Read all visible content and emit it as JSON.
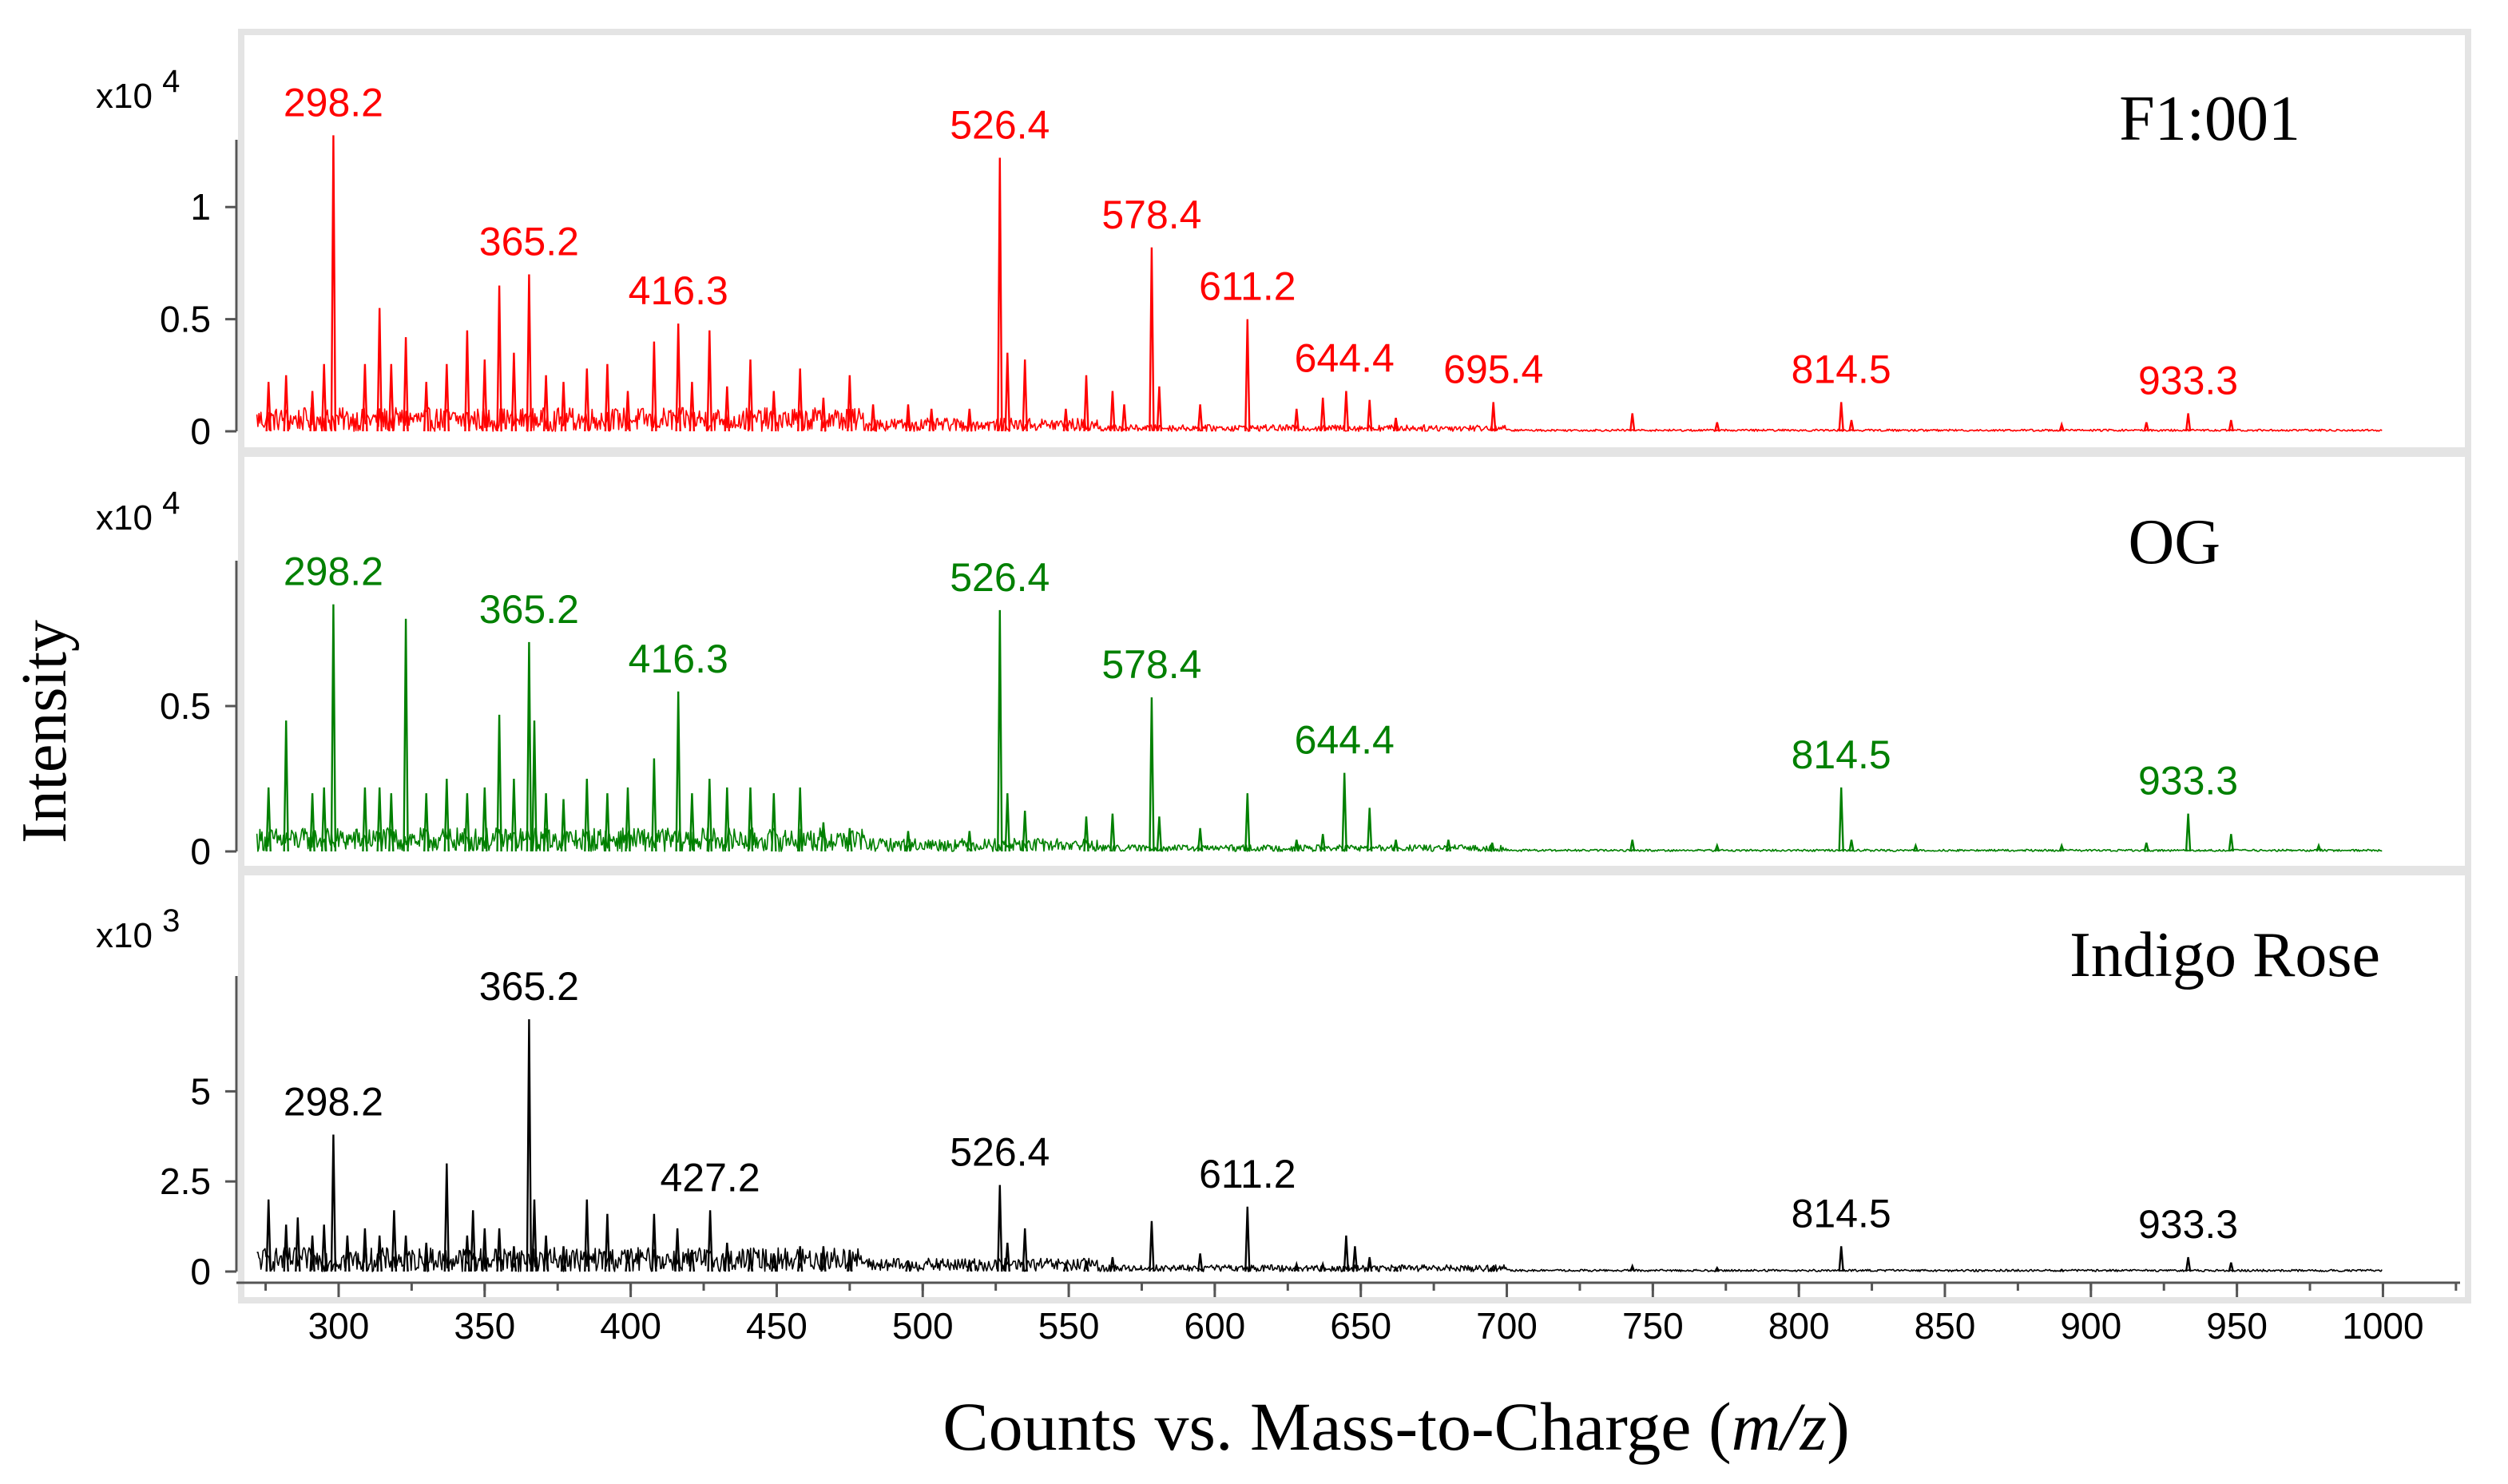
{
  "figure": {
    "ylabel": "Intensity",
    "xlabel_prefix": "Counts vs. Mass-to-Charge (",
    "xlabel_italic": "m/z",
    "xlabel_suffix": ")"
  },
  "chart_data": [
    {
      "type": "line",
      "title": "F1:001",
      "color": "#ff0000",
      "multiplier_base": "x10",
      "multiplier_exp": "4",
      "xlim": [
        265,
        1010
      ],
      "ylim": [
        0,
        1.3
      ],
      "y_ticks": [
        {
          "value": 0,
          "label": "0"
        },
        {
          "value": 0.5,
          "label": "0.5"
        },
        {
          "value": 1,
          "label": "1"
        }
      ],
      "x_ticks": [
        300,
        350,
        400,
        450,
        500,
        550,
        600,
        650,
        700,
        750,
        800,
        850,
        900,
        950,
        1000
      ],
      "peaks": [
        [
          276,
          0.22
        ],
        [
          282,
          0.25
        ],
        [
          291,
          0.18
        ],
        [
          295,
          0.3
        ],
        [
          298.2,
          1.32
        ],
        [
          309,
          0.3
        ],
        [
          314,
          0.55
        ],
        [
          318,
          0.3
        ],
        [
          323,
          0.42
        ],
        [
          330,
          0.22
        ],
        [
          337,
          0.3
        ],
        [
          344,
          0.45
        ],
        [
          350,
          0.32
        ],
        [
          355,
          0.65
        ],
        [
          360,
          0.35
        ],
        [
          365.2,
          0.7
        ],
        [
          371,
          0.25
        ],
        [
          377,
          0.22
        ],
        [
          385,
          0.28
        ],
        [
          392,
          0.3
        ],
        [
          399,
          0.18
        ],
        [
          408,
          0.4
        ],
        [
          416.3,
          0.48
        ],
        [
          421,
          0.22
        ],
        [
          427,
          0.45
        ],
        [
          433,
          0.2
        ],
        [
          441,
          0.32
        ],
        [
          449,
          0.18
        ],
        [
          458,
          0.28
        ],
        [
          466,
          0.15
        ],
        [
          475,
          0.25
        ],
        [
          483,
          0.12
        ],
        [
          495,
          0.12
        ],
        [
          503,
          0.1
        ],
        [
          516,
          0.1
        ],
        [
          526.4,
          1.22
        ],
        [
          529,
          0.35
        ],
        [
          535,
          0.32
        ],
        [
          549,
          0.1
        ],
        [
          556,
          0.25
        ],
        [
          565,
          0.18
        ],
        [
          569,
          0.12
        ],
        [
          578.4,
          0.82
        ],
        [
          581,
          0.2
        ],
        [
          595,
          0.12
        ],
        [
          611.2,
          0.5
        ],
        [
          628,
          0.1
        ],
        [
          637,
          0.15
        ],
        [
          645,
          0.18
        ],
        [
          653,
          0.14
        ],
        [
          662,
          0.06
        ],
        [
          695.4,
          0.13
        ],
        [
          743,
          0.08
        ],
        [
          772,
          0.04
        ],
        [
          814.5,
          0.13
        ],
        [
          818,
          0.05
        ],
        [
          890,
          0.03
        ],
        [
          919,
          0.04
        ],
        [
          933.3,
          0.08
        ],
        [
          948,
          0.05
        ]
      ],
      "labels": [
        {
          "x": 298.2,
          "y": 1.32,
          "text": "298.2"
        },
        {
          "x": 365.2,
          "y": 0.7,
          "text": "365.2"
        },
        {
          "x": 416.3,
          "y": 0.48,
          "text": "416.3"
        },
        {
          "x": 526.4,
          "y": 1.22,
          "text": "526.4"
        },
        {
          "x": 578.4,
          "y": 0.82,
          "text": "578.4"
        },
        {
          "x": 611.2,
          "y": 0.5,
          "text": "611.2"
        },
        {
          "x": 644.4,
          "y": 0.18,
          "text": "644.4"
        },
        {
          "x": 695.4,
          "y": 0.13,
          "text": "695.4"
        },
        {
          "x": 814.5,
          "y": 0.13,
          "text": "814.5"
        },
        {
          "x": 933.3,
          "y": 0.08,
          "text": "933.3"
        }
      ]
    },
    {
      "type": "line",
      "title": "OG",
      "color": "#008000",
      "multiplier_base": "x10",
      "multiplier_exp": "4",
      "xlim": [
        265,
        1010
      ],
      "ylim": [
        0,
        1.0
      ],
      "y_ticks": [
        {
          "value": 0,
          "label": "0"
        },
        {
          "value": 0.5,
          "label": "0.5"
        }
      ],
      "x_ticks": [
        300,
        350,
        400,
        450,
        500,
        550,
        600,
        650,
        700,
        750,
        800,
        850,
        900,
        950,
        1000
      ],
      "peaks": [
        [
          276,
          0.22
        ],
        [
          282,
          0.45
        ],
        [
          291,
          0.2
        ],
        [
          295,
          0.22
        ],
        [
          298.2,
          0.85
        ],
        [
          309,
          0.22
        ],
        [
          314,
          0.22
        ],
        [
          318,
          0.2
        ],
        [
          323,
          0.8
        ],
        [
          330,
          0.2
        ],
        [
          337,
          0.25
        ],
        [
          344,
          0.2
        ],
        [
          350,
          0.22
        ],
        [
          355,
          0.47
        ],
        [
          360,
          0.25
        ],
        [
          365.2,
          0.72
        ],
        [
          367,
          0.45
        ],
        [
          371,
          0.2
        ],
        [
          377,
          0.18
        ],
        [
          385,
          0.25
        ],
        [
          392,
          0.2
        ],
        [
          399,
          0.22
        ],
        [
          408,
          0.32
        ],
        [
          416.3,
          0.55
        ],
        [
          421,
          0.2
        ],
        [
          427,
          0.25
        ],
        [
          433,
          0.22
        ],
        [
          441,
          0.22
        ],
        [
          449,
          0.2
        ],
        [
          458,
          0.22
        ],
        [
          466,
          0.1
        ],
        [
          475,
          0.08
        ],
        [
          495,
          0.07
        ],
        [
          516,
          0.07
        ],
        [
          526.4,
          0.83
        ],
        [
          529,
          0.2
        ],
        [
          535,
          0.14
        ],
        [
          556,
          0.12
        ],
        [
          565,
          0.13
        ],
        [
          578.4,
          0.53
        ],
        [
          581,
          0.12
        ],
        [
          595,
          0.08
        ],
        [
          611.2,
          0.2
        ],
        [
          628,
          0.04
        ],
        [
          637,
          0.06
        ],
        [
          644.4,
          0.27
        ],
        [
          653,
          0.15
        ],
        [
          662,
          0.04
        ],
        [
          680,
          0.04
        ],
        [
          695,
          0.03
        ],
        [
          743,
          0.04
        ],
        [
          772,
          0.02
        ],
        [
          814.5,
          0.22
        ],
        [
          818,
          0.04
        ],
        [
          840,
          0.02
        ],
        [
          890,
          0.02
        ],
        [
          919,
          0.03
        ],
        [
          933.3,
          0.13
        ],
        [
          948,
          0.06
        ],
        [
          978,
          0.02
        ]
      ],
      "labels": [
        {
          "x": 298.2,
          "y": 0.85,
          "text": "298.2"
        },
        {
          "x": 365.2,
          "y": 0.72,
          "text": "365.2"
        },
        {
          "x": 416.3,
          "y": 0.55,
          "text": "416.3"
        },
        {
          "x": 526.4,
          "y": 0.83,
          "text": "526.4"
        },
        {
          "x": 578.4,
          "y": 0.53,
          "text": "578.4"
        },
        {
          "x": 644.4,
          "y": 0.27,
          "text": "644.4"
        },
        {
          "x": 814.5,
          "y": 0.22,
          "text": "814.5"
        },
        {
          "x": 933.3,
          "y": 0.13,
          "text": "933.3"
        }
      ]
    },
    {
      "type": "line",
      "title": "Indigo Rose",
      "color": "#000000",
      "multiplier_base": "x10",
      "multiplier_exp": "3",
      "xlim": [
        265,
        1010
      ],
      "ylim": [
        0,
        8.2
      ],
      "y_ticks": [
        {
          "value": 0,
          "label": "0"
        },
        {
          "value": 2.5,
          "label": "2.5"
        },
        {
          "value": 5,
          "label": "5"
        }
      ],
      "x_ticks": [
        300,
        350,
        400,
        450,
        500,
        550,
        600,
        650,
        700,
        750,
        800,
        850,
        900,
        950,
        1000
      ],
      "peaks": [
        [
          276,
          2.0
        ],
        [
          282,
          1.3
        ],
        [
          286,
          1.5
        ],
        [
          291,
          1.0
        ],
        [
          295,
          1.3
        ],
        [
          298.2,
          3.8
        ],
        [
          303,
          1.0
        ],
        [
          309,
          1.2
        ],
        [
          314,
          1.0
        ],
        [
          319,
          1.7
        ],
        [
          323,
          1.0
        ],
        [
          330,
          0.8
        ],
        [
          337,
          3.0
        ],
        [
          344,
          1.0
        ],
        [
          346,
          1.7
        ],
        [
          350,
          1.2
        ],
        [
          355,
          1.2
        ],
        [
          360,
          0.7
        ],
        [
          365.2,
          7.0
        ],
        [
          367,
          2.0
        ],
        [
          371,
          1.0
        ],
        [
          377,
          0.7
        ],
        [
          385,
          2.0
        ],
        [
          392,
          1.6
        ],
        [
          399,
          0.6
        ],
        [
          408,
          1.6
        ],
        [
          416,
          1.2
        ],
        [
          421,
          0.6
        ],
        [
          427.2,
          1.7
        ],
        [
          433,
          0.8
        ],
        [
          441,
          0.5
        ],
        [
          449,
          0.5
        ],
        [
          458,
          0.7
        ],
        [
          466,
          0.7
        ],
        [
          475,
          0.6
        ],
        [
          495,
          0.3
        ],
        [
          516,
          0.3
        ],
        [
          526.4,
          2.4
        ],
        [
          529,
          0.8
        ],
        [
          535,
          1.2
        ],
        [
          549,
          0.2
        ],
        [
          556,
          0.3
        ],
        [
          565,
          0.4
        ],
        [
          578.4,
          1.4
        ],
        [
          595,
          0.5
        ],
        [
          611.2,
          1.8
        ],
        [
          628,
          0.2
        ],
        [
          637,
          0.2
        ],
        [
          645,
          1.0
        ],
        [
          648,
          0.7
        ],
        [
          653,
          0.4
        ],
        [
          662,
          0.1
        ],
        [
          695,
          0.1
        ],
        [
          743,
          0.15
        ],
        [
          772,
          0.1
        ],
        [
          814.5,
          0.7
        ],
        [
          890,
          0.05
        ],
        [
          933.3,
          0.4
        ],
        [
          948,
          0.25
        ]
      ],
      "labels": [
        {
          "x": 298.2,
          "y": 3.8,
          "text": "298.2"
        },
        {
          "x": 365.2,
          "y": 7.0,
          "text": "365.2"
        },
        {
          "x": 427.2,
          "y": 1.7,
          "text": "427.2"
        },
        {
          "x": 526.4,
          "y": 2.4,
          "text": "526.4"
        },
        {
          "x": 611.2,
          "y": 1.8,
          "text": "611.2"
        },
        {
          "x": 814.5,
          "y": 0.7,
          "text": "814.5"
        },
        {
          "x": 933.3,
          "y": 0.4,
          "text": "933.3"
        }
      ]
    }
  ]
}
